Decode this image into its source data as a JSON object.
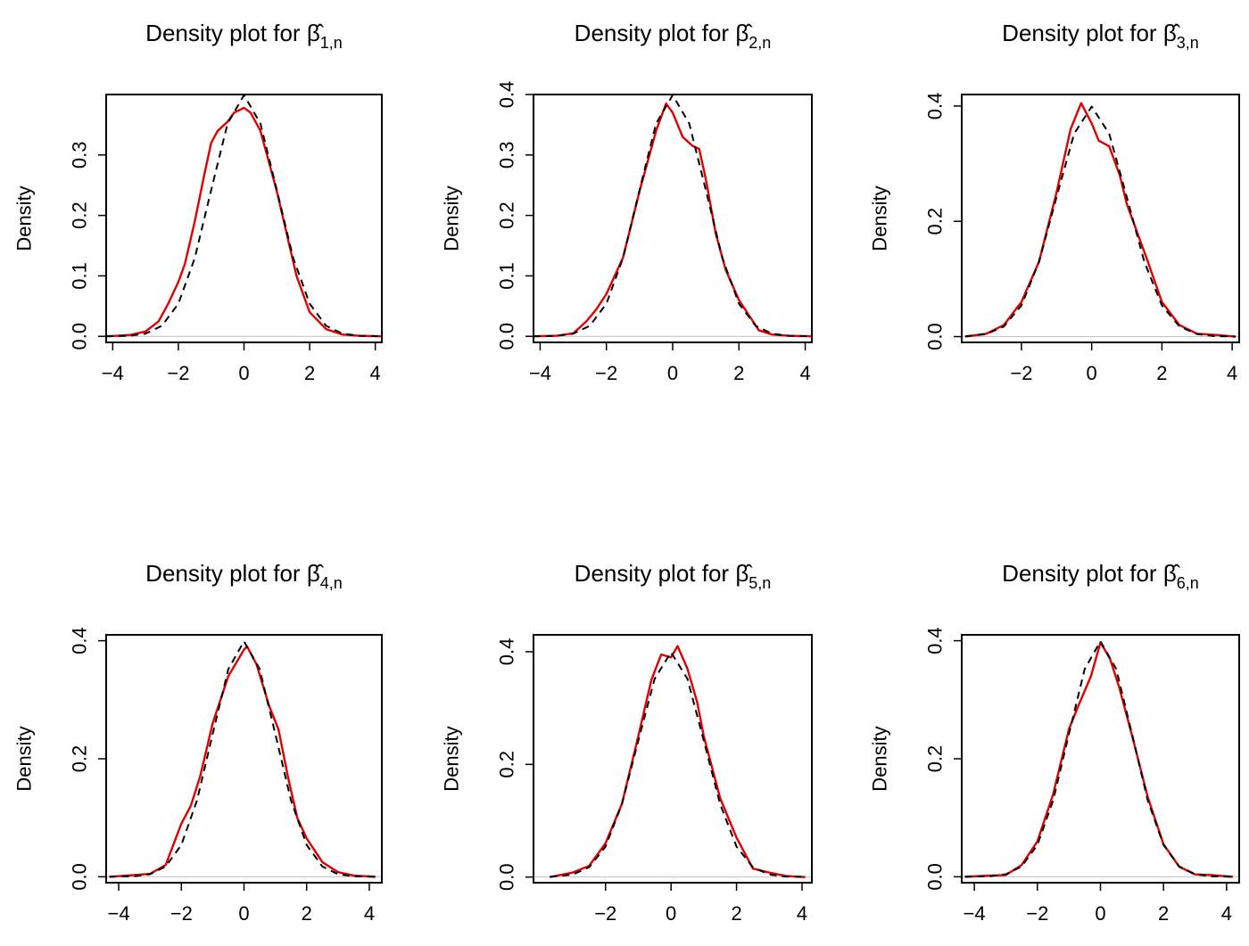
{
  "chart_data": [
    {
      "type": "line",
      "title_prefix": "Density plot for",
      "title_symbol": "β",
      "title_subscript": "1,n",
      "ylabel": "Density",
      "xlim": [
        -4.2,
        4.2
      ],
      "ylim": [
        -0.01,
        0.4
      ],
      "xticks": [
        -4,
        -2,
        0,
        2,
        4
      ],
      "yticks": [
        0.0,
        0.1,
        0.2,
        0.3
      ],
      "series": [
        {
          "style": "solid",
          "color": "#e00000",
          "x": [
            -4.2,
            -3.5,
            -3,
            -2.6,
            -2.3,
            -2.0,
            -1.8,
            -1.5,
            -1.2,
            -1.0,
            -0.8,
            -0.5,
            -0.3,
            0.0,
            0.2,
            0.5,
            0.8,
            1.0,
            1.3,
            1.6,
            2.0,
            2.5,
            3.0,
            3.5,
            4.2
          ],
          "y": [
            0.0,
            0.002,
            0.008,
            0.025,
            0.055,
            0.09,
            0.12,
            0.19,
            0.27,
            0.32,
            0.34,
            0.355,
            0.37,
            0.378,
            0.37,
            0.34,
            0.28,
            0.24,
            0.17,
            0.1,
            0.04,
            0.012,
            0.003,
            0.001,
            0.0
          ]
        },
        {
          "style": "dashed",
          "color": "#000000",
          "x": [
            -4.2,
            -3.5,
            -3.0,
            -2.5,
            -2.0,
            -1.5,
            -1.0,
            -0.5,
            0.0,
            0.5,
            1.0,
            1.5,
            2.0,
            2.5,
            3.0,
            3.5,
            4.2
          ],
          "y": [
            0.0001,
            0.0009,
            0.0044,
            0.0175,
            0.054,
            0.1295,
            0.242,
            0.352,
            0.399,
            0.352,
            0.242,
            0.1295,
            0.054,
            0.0175,
            0.0044,
            0.0009,
            0.0001
          ]
        }
      ]
    },
    {
      "type": "line",
      "title_prefix": "Density plot for",
      "title_symbol": "β",
      "title_subscript": "2,n",
      "ylabel": "Density",
      "xlim": [
        -4.2,
        4.2
      ],
      "ylim": [
        -0.01,
        0.4
      ],
      "xticks": [
        -4,
        -2,
        0,
        2,
        4
      ],
      "yticks": [
        0.0,
        0.1,
        0.2,
        0.3,
        0.4
      ],
      "series": [
        {
          "style": "solid",
          "color": "#e00000",
          "x": [
            -4.2,
            -3.5,
            -3.0,
            -2.6,
            -2.3,
            -2.0,
            -1.5,
            -1.0,
            -0.5,
            -0.2,
            0.0,
            0.3,
            0.6,
            0.8,
            1.0,
            1.3,
            1.6,
            2.0,
            2.3,
            2.6,
            3.0,
            3.5,
            4.2
          ],
          "y": [
            0.0,
            0.001,
            0.005,
            0.025,
            0.045,
            0.07,
            0.13,
            0.24,
            0.34,
            0.385,
            0.37,
            0.33,
            0.315,
            0.31,
            0.26,
            0.17,
            0.11,
            0.06,
            0.035,
            0.01,
            0.003,
            0.001,
            0.0
          ]
        },
        {
          "style": "dashed",
          "color": "#000000",
          "x": [
            -4.2,
            -3.5,
            -3.0,
            -2.5,
            -2.0,
            -1.5,
            -1.0,
            -0.5,
            0.0,
            0.5,
            1.0,
            1.5,
            2.0,
            2.5,
            3.0,
            3.5,
            4.2
          ],
          "y": [
            0.0001,
            0.0009,
            0.0044,
            0.0175,
            0.054,
            0.1295,
            0.242,
            0.352,
            0.399,
            0.352,
            0.242,
            0.1295,
            0.054,
            0.0175,
            0.0044,
            0.0009,
            0.0001
          ]
        }
      ]
    },
    {
      "type": "line",
      "title_prefix": "Density plot for",
      "title_symbol": "β",
      "title_subscript": "3,n",
      "ylabel": "Density",
      "xlim": [
        -3.7,
        4.2
      ],
      "ylim": [
        -0.01,
        0.42
      ],
      "xticks": [
        -2,
        0,
        2,
        4
      ],
      "yticks": [
        0.0,
        0.2,
        0.4
      ],
      "series": [
        {
          "style": "solid",
          "color": "#e00000",
          "x": [
            -3.6,
            -3.0,
            -2.5,
            -2.0,
            -1.5,
            -1.0,
            -0.6,
            -0.3,
            0.0,
            0.2,
            0.5,
            0.8,
            1.0,
            1.3,
            1.6,
            2.0,
            2.5,
            3.0,
            3.5,
            4.1
          ],
          "y": [
            0.0,
            0.005,
            0.02,
            0.06,
            0.13,
            0.25,
            0.36,
            0.405,
            0.37,
            0.34,
            0.33,
            0.28,
            0.23,
            0.18,
            0.13,
            0.06,
            0.02,
            0.005,
            0.003,
            0.0
          ]
        },
        {
          "style": "dashed",
          "color": "#000000",
          "x": [
            -3.6,
            -3.0,
            -2.5,
            -2.0,
            -1.5,
            -1.0,
            -0.5,
            0.0,
            0.5,
            1.0,
            1.5,
            2.0,
            2.5,
            3.0,
            3.5,
            4.1
          ],
          "y": [
            0.0006,
            0.0044,
            0.0175,
            0.054,
            0.1295,
            0.242,
            0.352,
            0.399,
            0.352,
            0.242,
            0.1295,
            0.054,
            0.0175,
            0.0044,
            0.0009,
            0.0001
          ]
        }
      ]
    },
    {
      "type": "line",
      "title_prefix": "Density plot for",
      "title_symbol": "β",
      "title_subscript": "4,n",
      "ylabel": "Density",
      "xlim": [
        -4.4,
        4.4
      ],
      "ylim": [
        -0.01,
        0.41
      ],
      "xticks": [
        -4,
        -2,
        0,
        2,
        4
      ],
      "yticks": [
        0.0,
        0.2,
        0.4
      ],
      "series": [
        {
          "style": "solid",
          "color": "#e00000",
          "x": [
            -4.3,
            -3.5,
            -3.0,
            -2.5,
            -2.0,
            -1.7,
            -1.4,
            -1.0,
            -0.5,
            0.0,
            0.1,
            0.4,
            0.8,
            1.1,
            1.4,
            1.7,
            2.0,
            2.5,
            3.0,
            3.5,
            4.2
          ],
          "y": [
            0.0,
            0.003,
            0.005,
            0.02,
            0.09,
            0.12,
            0.17,
            0.26,
            0.34,
            0.385,
            0.39,
            0.36,
            0.29,
            0.25,
            0.17,
            0.1,
            0.065,
            0.025,
            0.008,
            0.002,
            0.0
          ]
        },
        {
          "style": "dashed",
          "color": "#000000",
          "x": [
            -4.3,
            -3.5,
            -3.0,
            -2.5,
            -2.0,
            -1.5,
            -1.0,
            -0.5,
            0.0,
            0.5,
            1.0,
            1.5,
            2.0,
            2.5,
            3.0,
            3.5,
            4.2
          ],
          "y": [
            0.0001,
            0.0009,
            0.0044,
            0.0175,
            0.054,
            0.1295,
            0.242,
            0.352,
            0.399,
            0.352,
            0.242,
            0.1295,
            0.054,
            0.0175,
            0.0044,
            0.0009,
            0.0001
          ]
        }
      ]
    },
    {
      "type": "line",
      "title_prefix": "Density plot for",
      "title_symbol": "β",
      "title_subscript": "5,n",
      "ylabel": "Density",
      "xlim": [
        -4.2,
        4.3
      ],
      "ylim": [
        -0.01,
        0.43
      ],
      "xticks": [
        -2,
        0,
        2,
        4
      ],
      "yticks": [
        0.0,
        0.2,
        0.4
      ],
      "series": [
        {
          "style": "solid",
          "color": "#e00000",
          "x": [
            -3.7,
            -3.0,
            -2.5,
            -2.0,
            -1.5,
            -1.0,
            -0.6,
            -0.3,
            0.0,
            0.2,
            0.5,
            0.8,
            1.0,
            1.5,
            2.0,
            2.5,
            3.0,
            3.5,
            4.1
          ],
          "y": [
            0.0,
            0.008,
            0.02,
            0.06,
            0.13,
            0.25,
            0.35,
            0.395,
            0.39,
            0.41,
            0.37,
            0.31,
            0.25,
            0.14,
            0.07,
            0.015,
            0.008,
            0.002,
            0.0
          ]
        },
        {
          "style": "dashed",
          "color": "#000000",
          "x": [
            -3.7,
            -3.0,
            -2.5,
            -2.0,
            -1.5,
            -1.0,
            -0.5,
            0.0,
            0.5,
            1.0,
            1.5,
            2.0,
            2.5,
            3.0,
            3.5,
            4.1
          ],
          "y": [
            0.0004,
            0.0044,
            0.0175,
            0.054,
            0.1295,
            0.242,
            0.352,
            0.399,
            0.352,
            0.242,
            0.1295,
            0.054,
            0.0175,
            0.0044,
            0.0009,
            0.0001
          ]
        }
      ]
    },
    {
      "type": "line",
      "title_prefix": "Density plot for",
      "title_symbol": "β",
      "title_subscript": "6,n",
      "ylabel": "Density",
      "xlim": [
        -4.4,
        4.4
      ],
      "ylim": [
        -0.01,
        0.41
      ],
      "xticks": [
        -4,
        -2,
        0,
        2,
        4
      ],
      "yticks": [
        0.0,
        0.2,
        0.4
      ],
      "series": [
        {
          "style": "solid",
          "color": "#e00000",
          "x": [
            -4.3,
            -3.5,
            -3.0,
            -2.5,
            -2.0,
            -1.5,
            -1.0,
            -0.7,
            -0.3,
            0.0,
            0.3,
            0.6,
            1.0,
            1.5,
            2.0,
            2.5,
            3.0,
            3.5,
            4.2
          ],
          "y": [
            0.0,
            0.002,
            0.003,
            0.02,
            0.06,
            0.14,
            0.25,
            0.29,
            0.34,
            0.397,
            0.37,
            0.32,
            0.24,
            0.135,
            0.055,
            0.017,
            0.004,
            0.003,
            0.0
          ]
        },
        {
          "style": "dashed",
          "color": "#000000",
          "x": [
            -4.3,
            -3.5,
            -3.0,
            -2.5,
            -2.0,
            -1.5,
            -1.0,
            -0.5,
            0.0,
            0.5,
            1.0,
            1.5,
            2.0,
            2.5,
            3.0,
            3.5,
            4.2
          ],
          "y": [
            0.0001,
            0.0009,
            0.0044,
            0.0175,
            0.054,
            0.1295,
            0.242,
            0.352,
            0.399,
            0.352,
            0.242,
            0.1295,
            0.054,
            0.0175,
            0.0044,
            0.0009,
            0.0001
          ]
        }
      ]
    }
  ]
}
